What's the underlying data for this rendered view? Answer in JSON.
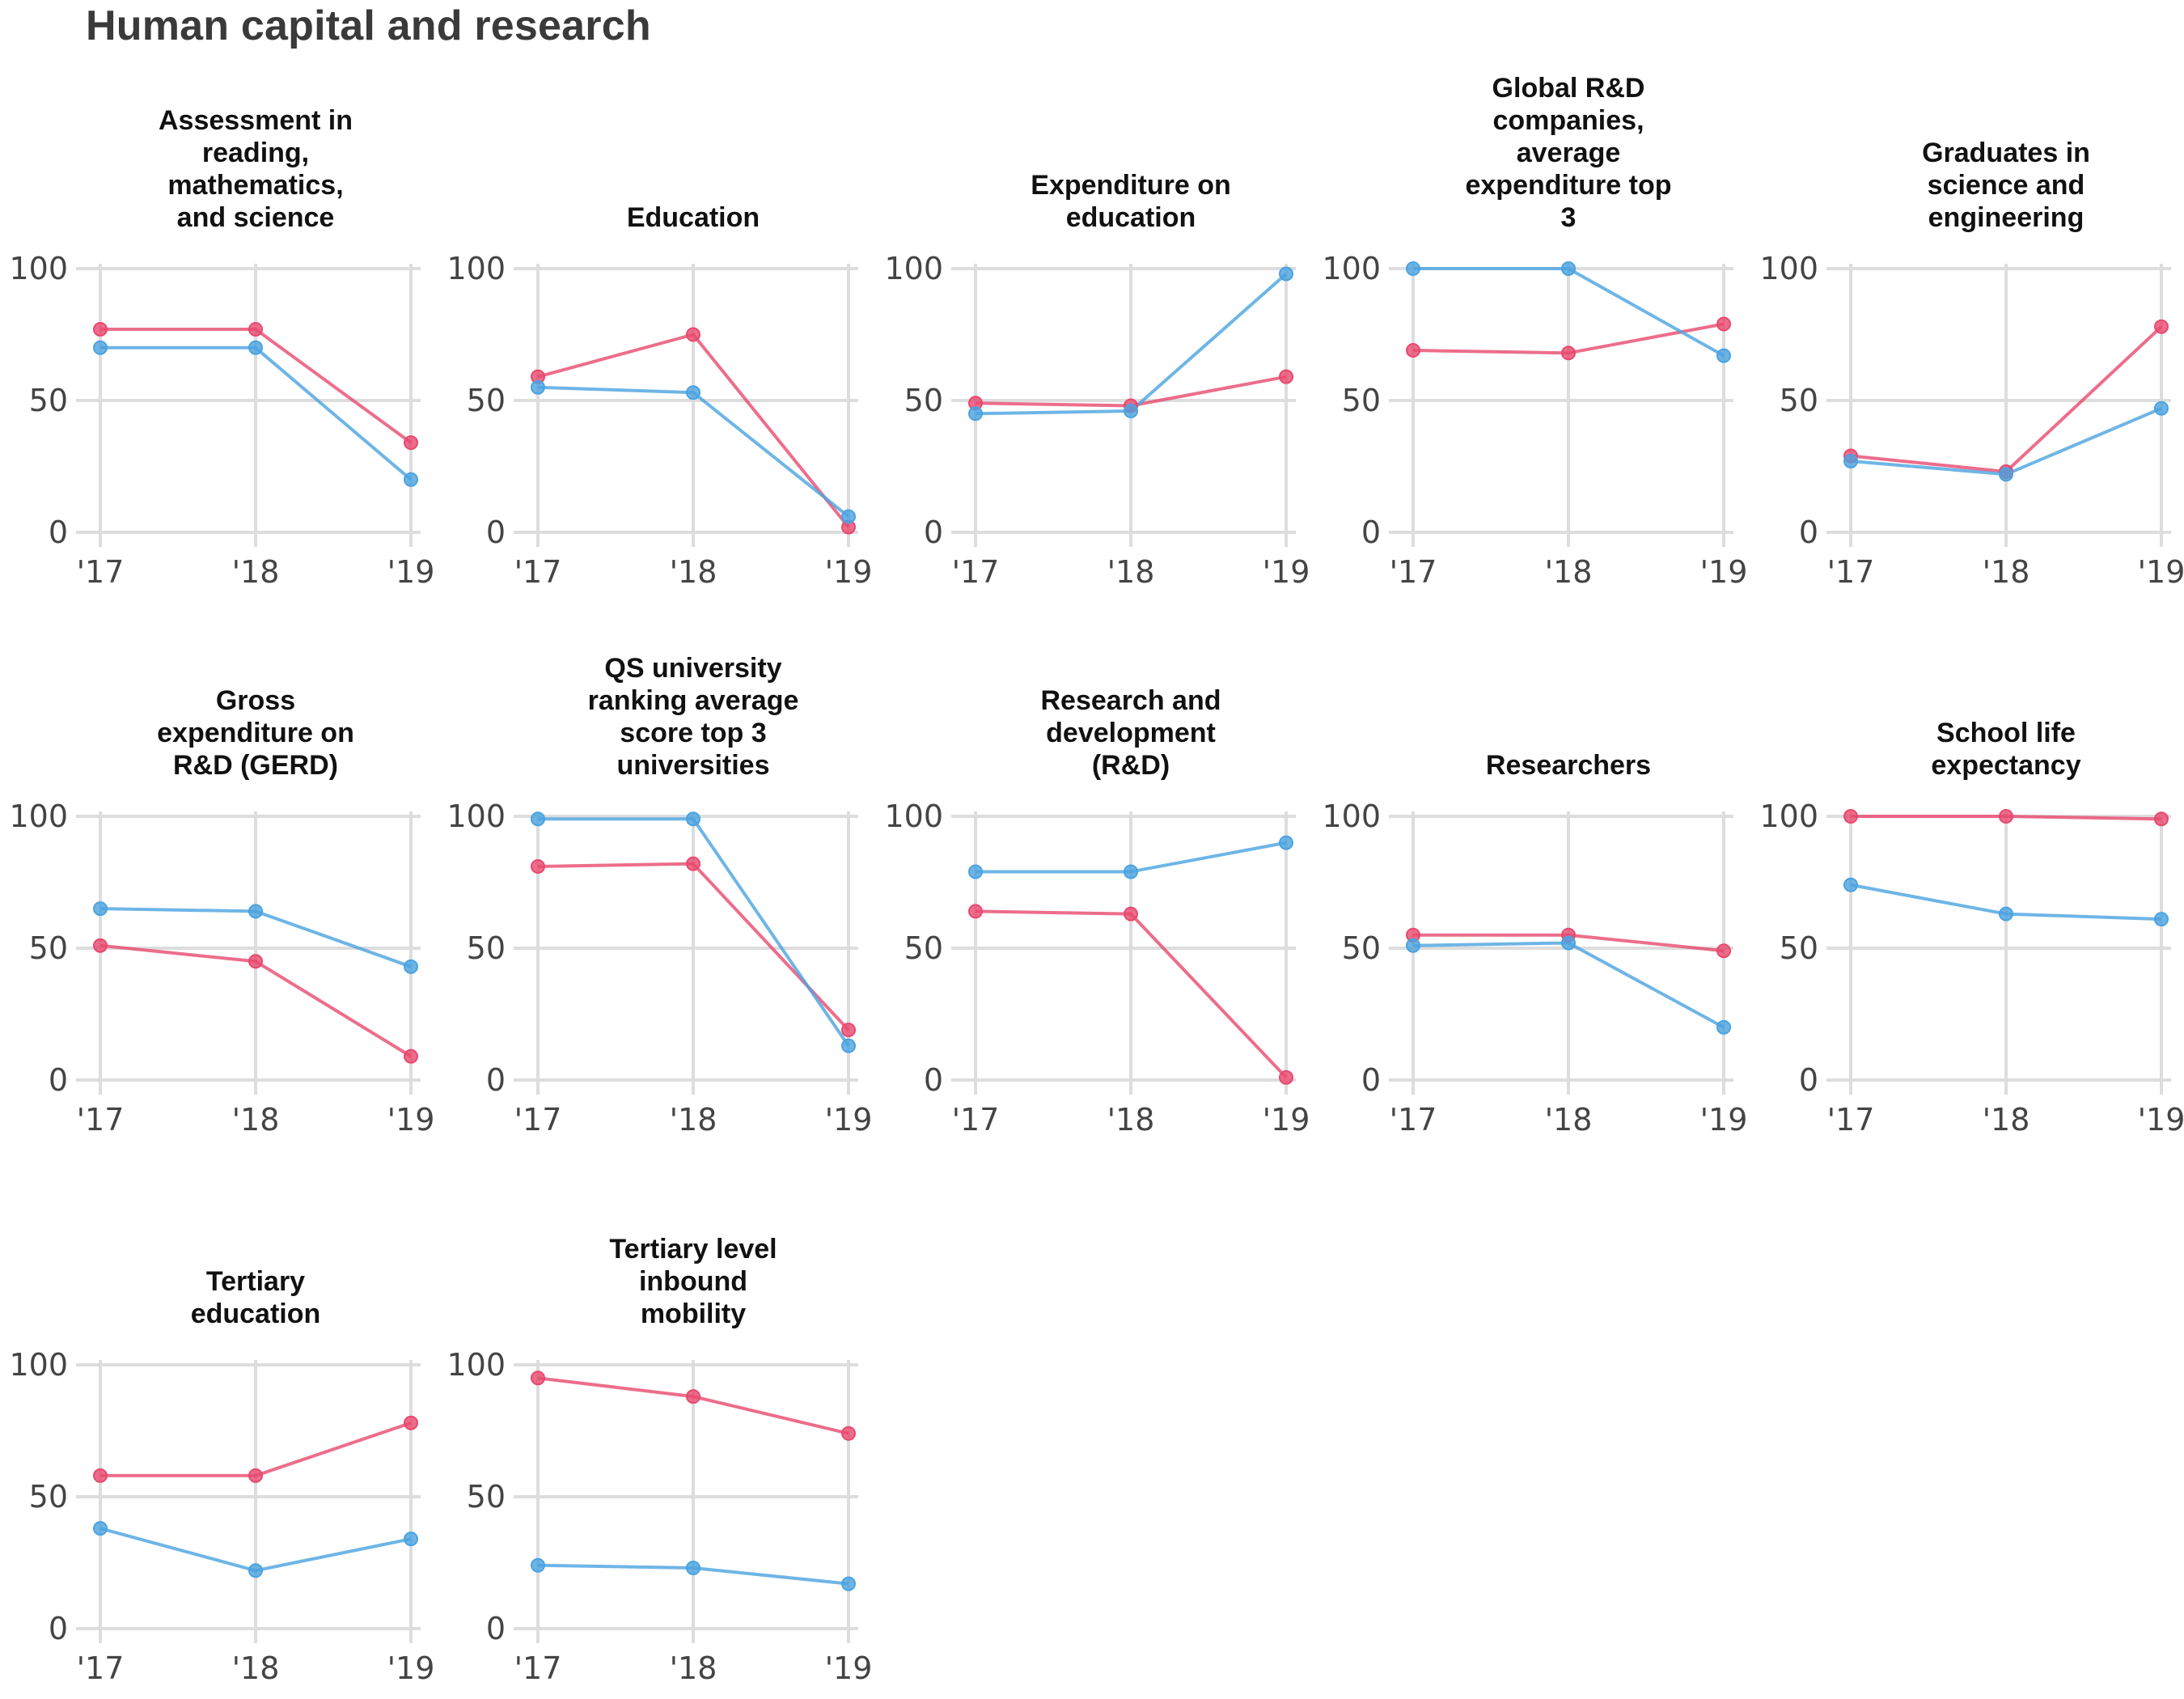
{
  "title": "Human capital and research",
  "colors": {
    "series_a": "#e8496e",
    "series_b": "#4aa3e0",
    "grid": "#dddddd",
    "text": "#444444"
  },
  "chart_data": [
    {
      "type": "line",
      "title": "Assessment in reading, mathematics, and science",
      "categories": [
        "'17",
        "'18",
        "'19"
      ],
      "ylim": [
        0,
        100
      ],
      "yticks": [
        0,
        50,
        100
      ],
      "series": [
        {
          "values": [
            77,
            77,
            34
          ],
          "color": "#e8496e"
        },
        {
          "values": [
            70,
            70,
            20
          ],
          "color": "#4aa3e0"
        }
      ]
    },
    {
      "type": "line",
      "title": "Education",
      "categories": [
        "'17",
        "'18",
        "'19"
      ],
      "ylim": [
        0,
        100
      ],
      "yticks": [
        0,
        50,
        100
      ],
      "series": [
        {
          "values": [
            59,
            75,
            2
          ],
          "color": "#e8496e"
        },
        {
          "values": [
            55,
            53,
            6
          ],
          "color": "#4aa3e0"
        }
      ]
    },
    {
      "type": "line",
      "title": "Expenditure on education",
      "categories": [
        "'17",
        "'18",
        "'19"
      ],
      "ylim": [
        0,
        100
      ],
      "yticks": [
        0,
        50,
        100
      ],
      "series": [
        {
          "values": [
            49,
            48,
            59
          ],
          "color": "#e8496e"
        },
        {
          "values": [
            45,
            46,
            98
          ],
          "color": "#4aa3e0"
        }
      ]
    },
    {
      "type": "line",
      "title": "Global R&D companies, average expenditure top 3",
      "categories": [
        "'17",
        "'18",
        "'19"
      ],
      "ylim": [
        0,
        100
      ],
      "yticks": [
        0,
        50,
        100
      ],
      "series": [
        {
          "values": [
            69,
            68,
            79
          ],
          "color": "#e8496e"
        },
        {
          "values": [
            100,
            100,
            67
          ],
          "color": "#4aa3e0"
        }
      ]
    },
    {
      "type": "line",
      "title": "Graduates in science and engineering",
      "categories": [
        "'17",
        "'18",
        "'19"
      ],
      "ylim": [
        0,
        100
      ],
      "yticks": [
        0,
        50,
        100
      ],
      "series": [
        {
          "values": [
            29,
            23,
            78
          ],
          "color": "#e8496e"
        },
        {
          "values": [
            27,
            22,
            47
          ],
          "color": "#4aa3e0"
        }
      ]
    },
    {
      "type": "line",
      "title": "Gross expenditure on R&D (GERD)",
      "categories": [
        "'17",
        "'18",
        "'19"
      ],
      "ylim": [
        0,
        100
      ],
      "yticks": [
        0,
        50,
        100
      ],
      "series": [
        {
          "values": [
            51,
            45,
            9
          ],
          "color": "#e8496e"
        },
        {
          "values": [
            65,
            64,
            43
          ],
          "color": "#4aa3e0"
        }
      ]
    },
    {
      "type": "line",
      "title": "QS university ranking average score top 3 universities",
      "categories": [
        "'17",
        "'18",
        "'19"
      ],
      "ylim": [
        0,
        100
      ],
      "yticks": [
        0,
        50,
        100
      ],
      "series": [
        {
          "values": [
            81,
            82,
            19
          ],
          "color": "#e8496e"
        },
        {
          "values": [
            99,
            99,
            13
          ],
          "color": "#4aa3e0"
        }
      ]
    },
    {
      "type": "line",
      "title": "Research and development (R&D)",
      "categories": [
        "'17",
        "'18",
        "'19"
      ],
      "ylim": [
        0,
        100
      ],
      "yticks": [
        0,
        50,
        100
      ],
      "series": [
        {
          "values": [
            64,
            63,
            1
          ],
          "color": "#e8496e"
        },
        {
          "values": [
            79,
            79,
            90
          ],
          "color": "#4aa3e0"
        }
      ]
    },
    {
      "type": "line",
      "title": "Researchers",
      "categories": [
        "'17",
        "'18",
        "'19"
      ],
      "ylim": [
        0,
        100
      ],
      "yticks": [
        0,
        50,
        100
      ],
      "series": [
        {
          "values": [
            55,
            55,
            49
          ],
          "color": "#e8496e"
        },
        {
          "values": [
            51,
            52,
            20
          ],
          "color": "#4aa3e0"
        }
      ]
    },
    {
      "type": "line",
      "title": "School life expectancy",
      "categories": [
        "'17",
        "'18",
        "'19"
      ],
      "ylim": [
        0,
        100
      ],
      "yticks": [
        0,
        50,
        100
      ],
      "series": [
        {
          "values": [
            100,
            100,
            99
          ],
          "color": "#e8496e"
        },
        {
          "values": [
            74,
            63,
            61
          ],
          "color": "#4aa3e0"
        }
      ]
    },
    {
      "type": "line",
      "title": "Tertiary education",
      "categories": [
        "'17",
        "'18",
        "'19"
      ],
      "ylim": [
        0,
        100
      ],
      "yticks": [
        0,
        50,
        100
      ],
      "series": [
        {
          "values": [
            58,
            58,
            78
          ],
          "color": "#e8496e"
        },
        {
          "values": [
            38,
            22,
            34
          ],
          "color": "#4aa3e0"
        }
      ]
    },
    {
      "type": "line",
      "title": "Tertiary level inbound mobility",
      "categories": [
        "'17",
        "'18",
        "'19"
      ],
      "ylim": [
        0,
        100
      ],
      "yticks": [
        0,
        50,
        100
      ],
      "series": [
        {
          "values": [
            95,
            88,
            74
          ],
          "color": "#e8496e"
        },
        {
          "values": [
            24,
            23,
            17
          ],
          "color": "#4aa3e0"
        }
      ]
    }
  ]
}
